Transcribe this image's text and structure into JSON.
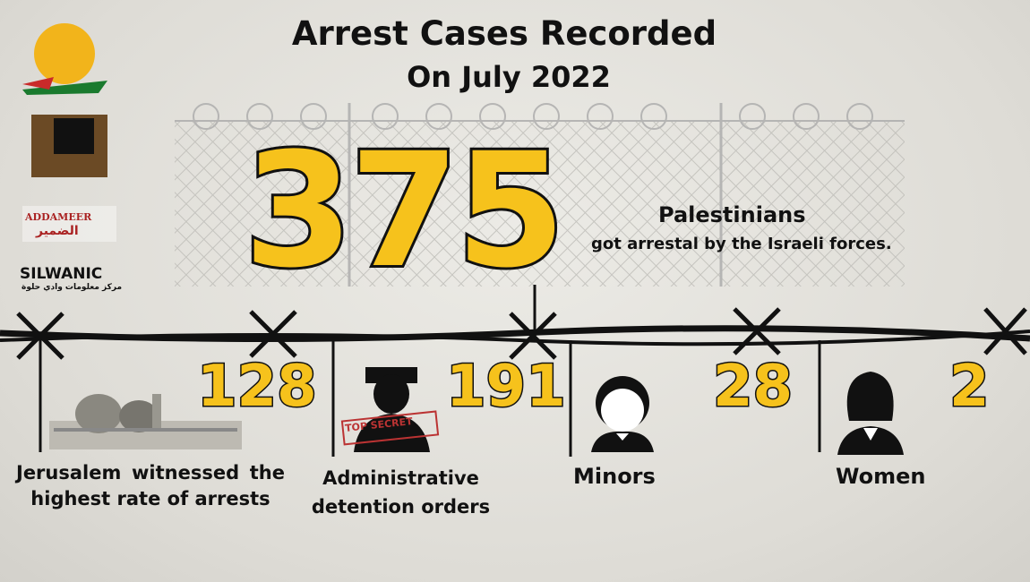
{
  "header": {
    "title": "Arrest Cases Recorded",
    "subtitle": "On July 2022"
  },
  "headline": {
    "value": 375,
    "label": "Palestinians",
    "sublabel": "got arrestal by the Israeli forces."
  },
  "stats": [
    {
      "value": 128,
      "label": "Jerusalem witnessed the highest rate of arrests"
    },
    {
      "value": 191,
      "label": "Administrative detention orders",
      "stamp": "TOP SECRET"
    },
    {
      "value": 28,
      "label": "Minors"
    },
    {
      "value": 2,
      "label": "Women"
    }
  ],
  "logos": [
    "ADDAMEER",
    "الضمير",
    "SILWANIC",
    "مركز معلومات وادي حلوة"
  ]
}
